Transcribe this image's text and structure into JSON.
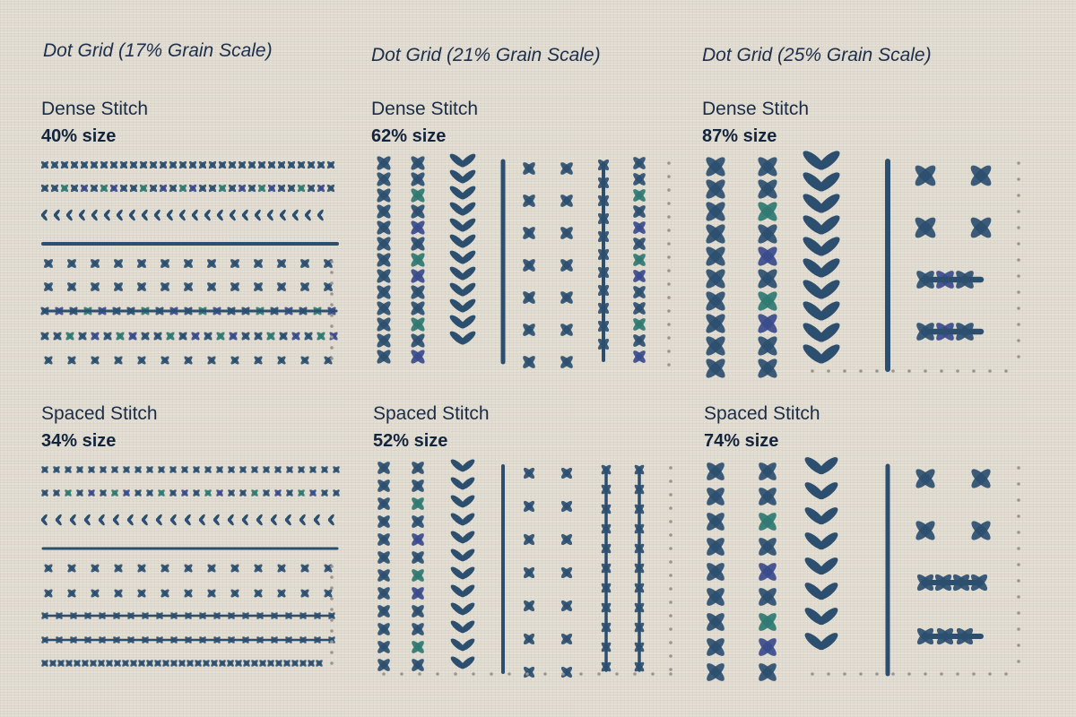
{
  "colors": {
    "background": "#e3ded3",
    "navy": "#2c4f70",
    "teal": "#2f7a72",
    "indigo": "#3b4b8c",
    "dot": "#9b9590"
  },
  "columns": [
    {
      "heading": "Dot Grid (17% Grain Scale)",
      "dense": {
        "label": "Dense Stitch",
        "size": "40% size"
      },
      "spaced": {
        "label": "Spaced Stitch",
        "size": "34% size"
      }
    },
    {
      "heading": "Dot Grid (21% Grain Scale)",
      "dense": {
        "label": "Dense Stitch",
        "size": "62% size"
      },
      "spaced": {
        "label": "Spaced Stitch",
        "size": "52% size"
      }
    },
    {
      "heading": "Dot Grid (25% Grain Scale)",
      "dense": {
        "label": "Dense Stitch",
        "size": "87% size"
      },
      "spaced": {
        "label": "Spaced Stitch",
        "size": "74% size"
      }
    }
  ],
  "stitch_types": [
    "cross-chain",
    "cross-chain-multicolor",
    "chevron",
    "running-line",
    "cross-grid",
    "cross-band"
  ]
}
